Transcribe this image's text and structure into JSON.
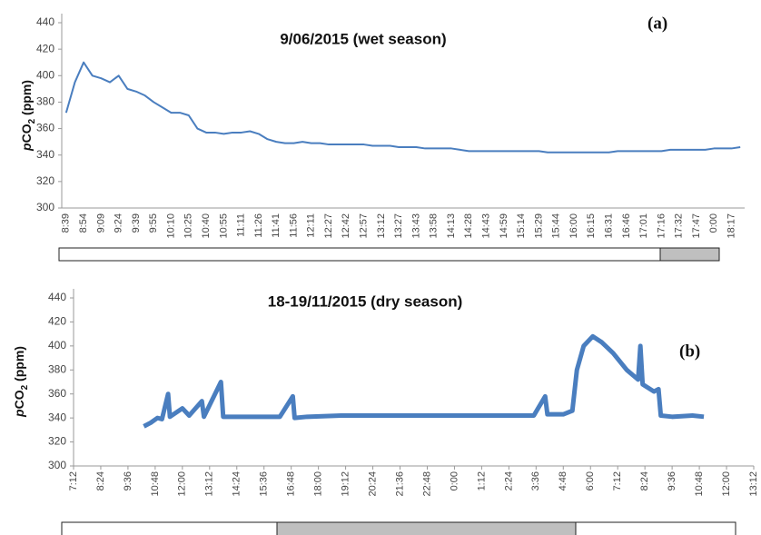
{
  "chart_data": [
    {
      "type": "line",
      "title": "9/06/2015 (wet season)",
      "annotation": "(a)",
      "y_label_parts": [
        "p",
        "CO",
        "2",
        " (ppm)"
      ],
      "categories": [
        "8:39",
        null,
        "8:54",
        null,
        "9:09",
        null,
        "9:24",
        null,
        "9:39",
        null,
        "9:55",
        null,
        "10:10",
        null,
        "10:25",
        null,
        "10:40",
        null,
        "10:55",
        null,
        "11:11",
        null,
        "11:26",
        null,
        "11:41",
        null,
        "11:56",
        null,
        "12:11",
        null,
        "12:27",
        null,
        "12:42",
        null,
        "12:57",
        null,
        "13:12",
        null,
        "13:27",
        null,
        "13:43",
        null,
        "13:58",
        null,
        "14:13",
        null,
        "14:28",
        null,
        "14:43",
        null,
        "14:59",
        null,
        "15:14",
        null,
        "15:29",
        null,
        "15:44",
        null,
        "16:00",
        null,
        "16:15",
        null,
        "16:31",
        null,
        "16:46",
        null,
        "17:01",
        null,
        "17:16",
        null,
        "17:32",
        null,
        "17:47",
        null,
        "0:00",
        null,
        "18:17",
        null
      ],
      "series": [
        {
          "name": "pCO2",
          "color": "#4a7ebf",
          "values": [
            372,
            395,
            410,
            400,
            398,
            395,
            400,
            390,
            388,
            385,
            380,
            376,
            372,
            372,
            370,
            360,
            357,
            357,
            356,
            357,
            357,
            358,
            356,
            352,
            350,
            349,
            349,
            350,
            349,
            349,
            348,
            348,
            348,
            348,
            348,
            347,
            347,
            347,
            346,
            346,
            346,
            345,
            345,
            345,
            345,
            344,
            343,
            343,
            343,
            343,
            343,
            343,
            343,
            343,
            343,
            342,
            342,
            342,
            342,
            342,
            342,
            342,
            342,
            343,
            343,
            343,
            343,
            343,
            343,
            344,
            344,
            344,
            344,
            344,
            345,
            345,
            345,
            346
          ]
        }
      ],
      "ylim": [
        300,
        440
      ],
      "yticks": [
        300,
        320,
        340,
        360,
        380,
        400,
        420,
        440
      ]
    },
    {
      "type": "line",
      "title": "18-19/11/2015 (dry season)",
      "annotation": "(b)",
      "y_label_parts": [
        "p",
        "CO",
        "2",
        " (ppm)"
      ],
      "x": [
        10.3,
        10.6,
        10.9,
        11.1,
        11.37,
        11.45,
        12.0,
        12.3,
        12.86,
        12.95,
        13.7,
        13.8,
        14.5,
        15.5,
        16.3,
        16.87,
        16.95,
        17.5,
        19.0,
        21.0,
        24.0,
        26.0,
        27.5,
        28.0,
        28.1,
        28.8,
        29.2,
        29.4,
        29.7,
        30.1,
        30.5,
        31.0,
        31.6,
        32.1,
        32.2,
        32.3,
        32.8,
        33.0,
        33.1,
        33.6,
        34.5,
        35.0
      ],
      "series": [
        {
          "name": "pCO2",
          "color": "#4a7ebf",
          "values": [
            333,
            336,
            340,
            339,
            360,
            341,
            348,
            342,
            354,
            341,
            370,
            341,
            341,
            341,
            341,
            358,
            340,
            341,
            342,
            342,
            342,
            342,
            342,
            358,
            343,
            343,
            346,
            380,
            400,
            408,
            403,
            394,
            380,
            372,
            400,
            368,
            362,
            364,
            342,
            341,
            342,
            341
          ]
        }
      ],
      "xlim": [
        7.2,
        37.2
      ],
      "xticks": [
        {
          "value": 7.2,
          "label": "7:12"
        },
        {
          "value": 8.4,
          "label": "8:24"
        },
        {
          "value": 9.6,
          "label": "9:36"
        },
        {
          "value": 10.8,
          "label": "10:48"
        },
        {
          "value": 12.0,
          "label": "12:00"
        },
        {
          "value": 13.2,
          "label": "13:12"
        },
        {
          "value": 14.4,
          "label": "14:24"
        },
        {
          "value": 15.6,
          "label": "15:36"
        },
        {
          "value": 16.8,
          "label": "16:48"
        },
        {
          "value": 18.0,
          "label": "18:00"
        },
        {
          "value": 19.2,
          "label": "19:12"
        },
        {
          "value": 20.4,
          "label": "20:24"
        },
        {
          "value": 21.6,
          "label": "21:36"
        },
        {
          "value": 22.8,
          "label": "22:48"
        },
        {
          "value": 24.0,
          "label": "0:00"
        },
        {
          "value": 25.2,
          "label": "1:12"
        },
        {
          "value": 26.4,
          "label": "2:24"
        },
        {
          "value": 27.6,
          "label": "3:36"
        },
        {
          "value": 28.8,
          "label": "4:48"
        },
        {
          "value": 30.0,
          "label": "6:00"
        },
        {
          "value": 31.2,
          "label": "7:12"
        },
        {
          "value": 32.4,
          "label": "8:24"
        },
        {
          "value": 33.6,
          "label": "9:36"
        },
        {
          "value": 34.8,
          "label": "10:48"
        },
        {
          "value": 36.0,
          "label": "12:00"
        },
        {
          "value": 37.2,
          "label": "13:12"
        }
      ],
      "ylim": [
        300,
        440
      ],
      "yticks": [
        300,
        320,
        340,
        360,
        380,
        400,
        420,
        440
      ]
    }
  ]
}
